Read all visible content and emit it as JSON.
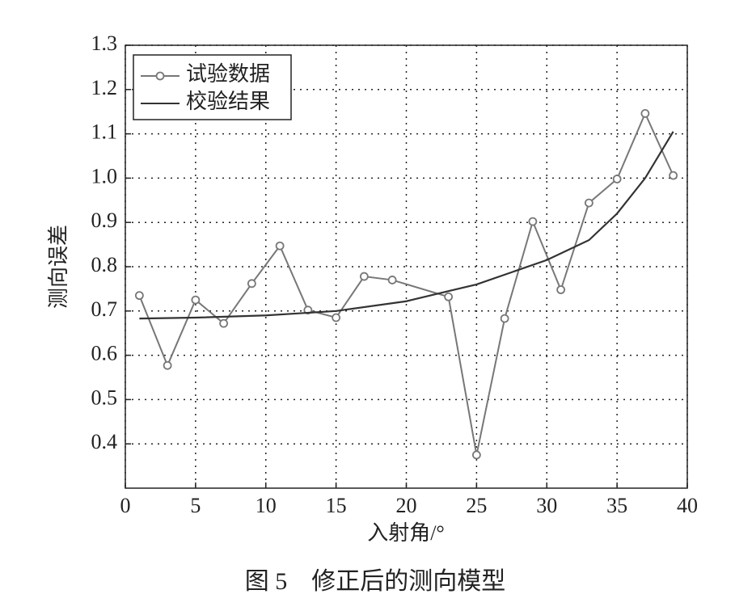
{
  "chart_data": {
    "type": "line",
    "title": "图 5　修正后的测向模型",
    "x_label": "入射角/°",
    "y_label": "测向误差",
    "xlim": [
      0,
      40
    ],
    "xticks": [
      0,
      5,
      10,
      15,
      20,
      25,
      30,
      35,
      40
    ],
    "ylim": [
      0.3,
      1.3
    ],
    "yticks": [
      0.4,
      0.5,
      0.6,
      0.7,
      0.8,
      0.9,
      {
        "value": 1,
        "label": "1.0"
      },
      1.1,
      1.2,
      1.3
    ],
    "grid": true,
    "legend": "upper-left",
    "series": [
      {
        "name": "试验数据",
        "color": "#777777",
        "marker": "circle",
        "x": [
          1,
          3,
          5,
          7,
          9,
          11,
          13,
          15,
          17,
          19,
          23,
          25,
          27,
          29,
          31,
          33,
          35,
          37,
          39
        ],
        "values": [
          0.735,
          0.577,
          0.725,
          0.672,
          0.762,
          0.847,
          0.702,
          0.685,
          0.778,
          0.77,
          0.732,
          0.375,
          0.683,
          0.902,
          0.748,
          0.944,
          0.998,
          1.146,
          1.006
        ]
      },
      {
        "name": "校验结果",
        "color": "#333333",
        "x": [
          1,
          5,
          10,
          15,
          20,
          23,
          25,
          30,
          33,
          35,
          37,
          39
        ],
        "values": [
          0.683,
          0.685,
          0.69,
          0.7,
          0.722,
          0.745,
          0.76,
          0.815,
          0.86,
          0.92,
          1.0,
          1.105
        ]
      }
    ]
  }
}
